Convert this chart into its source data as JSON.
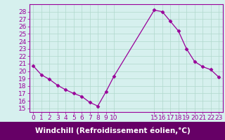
{
  "x": [
    0,
    1,
    2,
    3,
    4,
    5,
    6,
    7,
    8,
    9,
    10,
    15,
    16,
    17,
    18,
    19,
    20,
    21,
    22,
    23
  ],
  "y": [
    20.7,
    19.5,
    18.9,
    18.1,
    17.5,
    17.0,
    16.6,
    15.8,
    15.3,
    17.2,
    19.3,
    28.2,
    28.0,
    26.7,
    25.4,
    23.0,
    21.3,
    20.6,
    20.2,
    19.2
  ],
  "line_color": "#990099",
  "marker": "D",
  "marker_size": 2.5,
  "bg_color": "#d6f0ee",
  "grid_color": "#b0d8cc",
  "xlabel": "Windchill (Refroidissement éolien,°C)",
  "xlabel_bg": "#660066",
  "xlabel_color": "#ffffff",
  "xticks": [
    0,
    1,
    2,
    3,
    4,
    5,
    6,
    7,
    8,
    9,
    10,
    15,
    16,
    17,
    18,
    19,
    20,
    21,
    22,
    23
  ],
  "yticks": [
    15,
    16,
    17,
    18,
    19,
    20,
    21,
    22,
    23,
    24,
    25,
    26,
    27,
    28
  ],
  "ylim": [
    14.5,
    29.0
  ],
  "xlim": [
    -0.5,
    23.5
  ],
  "tick_fontsize": 6.5,
  "xlabel_fontsize": 7.5,
  "spine_color": "#990099"
}
